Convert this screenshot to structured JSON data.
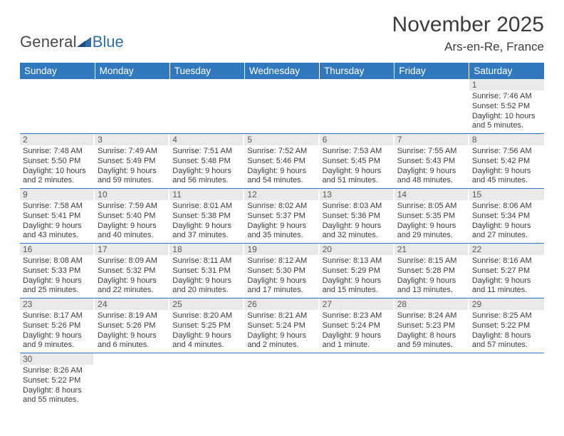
{
  "logo": {
    "general": "General",
    "blue": "Blue"
  },
  "title": "November 2025",
  "location": "Ars-en-Re, France",
  "colors": {
    "header_bg": "#3179be",
    "header_fg": "#ffffff",
    "daynum_bg": "#e9e9e9",
    "row_border": "#3179be",
    "text": "#3c3c3c"
  },
  "weekdays": [
    "Sunday",
    "Monday",
    "Tuesday",
    "Wednesday",
    "Thursday",
    "Friday",
    "Saturday"
  ],
  "weeks": [
    [
      null,
      null,
      null,
      null,
      null,
      null,
      {
        "n": 1,
        "sunrise": "7:46 AM",
        "sunset": "5:52 PM",
        "daylight": "10 hours and 5 minutes."
      }
    ],
    [
      {
        "n": 2,
        "sunrise": "7:48 AM",
        "sunset": "5:50 PM",
        "daylight": "10 hours and 2 minutes."
      },
      {
        "n": 3,
        "sunrise": "7:49 AM",
        "sunset": "5:49 PM",
        "daylight": "9 hours and 59 minutes."
      },
      {
        "n": 4,
        "sunrise": "7:51 AM",
        "sunset": "5:48 PM",
        "daylight": "9 hours and 56 minutes."
      },
      {
        "n": 5,
        "sunrise": "7:52 AM",
        "sunset": "5:46 PM",
        "daylight": "9 hours and 54 minutes."
      },
      {
        "n": 6,
        "sunrise": "7:53 AM",
        "sunset": "5:45 PM",
        "daylight": "9 hours and 51 minutes."
      },
      {
        "n": 7,
        "sunrise": "7:55 AM",
        "sunset": "5:43 PM",
        "daylight": "9 hours and 48 minutes."
      },
      {
        "n": 8,
        "sunrise": "7:56 AM",
        "sunset": "5:42 PM",
        "daylight": "9 hours and 45 minutes."
      }
    ],
    [
      {
        "n": 9,
        "sunrise": "7:58 AM",
        "sunset": "5:41 PM",
        "daylight": "9 hours and 43 minutes."
      },
      {
        "n": 10,
        "sunrise": "7:59 AM",
        "sunset": "5:40 PM",
        "daylight": "9 hours and 40 minutes."
      },
      {
        "n": 11,
        "sunrise": "8:01 AM",
        "sunset": "5:38 PM",
        "daylight": "9 hours and 37 minutes."
      },
      {
        "n": 12,
        "sunrise": "8:02 AM",
        "sunset": "5:37 PM",
        "daylight": "9 hours and 35 minutes."
      },
      {
        "n": 13,
        "sunrise": "8:03 AM",
        "sunset": "5:36 PM",
        "daylight": "9 hours and 32 minutes."
      },
      {
        "n": 14,
        "sunrise": "8:05 AM",
        "sunset": "5:35 PM",
        "daylight": "9 hours and 29 minutes."
      },
      {
        "n": 15,
        "sunrise": "8:06 AM",
        "sunset": "5:34 PM",
        "daylight": "9 hours and 27 minutes."
      }
    ],
    [
      {
        "n": 16,
        "sunrise": "8:08 AM",
        "sunset": "5:33 PM",
        "daylight": "9 hours and 25 minutes."
      },
      {
        "n": 17,
        "sunrise": "8:09 AM",
        "sunset": "5:32 PM",
        "daylight": "9 hours and 22 minutes."
      },
      {
        "n": 18,
        "sunrise": "8:11 AM",
        "sunset": "5:31 PM",
        "daylight": "9 hours and 20 minutes."
      },
      {
        "n": 19,
        "sunrise": "8:12 AM",
        "sunset": "5:30 PM",
        "daylight": "9 hours and 17 minutes."
      },
      {
        "n": 20,
        "sunrise": "8:13 AM",
        "sunset": "5:29 PM",
        "daylight": "9 hours and 15 minutes."
      },
      {
        "n": 21,
        "sunrise": "8:15 AM",
        "sunset": "5:28 PM",
        "daylight": "9 hours and 13 minutes."
      },
      {
        "n": 22,
        "sunrise": "8:16 AM",
        "sunset": "5:27 PM",
        "daylight": "9 hours and 11 minutes."
      }
    ],
    [
      {
        "n": 23,
        "sunrise": "8:17 AM",
        "sunset": "5:26 PM",
        "daylight": "9 hours and 9 minutes."
      },
      {
        "n": 24,
        "sunrise": "8:19 AM",
        "sunset": "5:26 PM",
        "daylight": "9 hours and 6 minutes."
      },
      {
        "n": 25,
        "sunrise": "8:20 AM",
        "sunset": "5:25 PM",
        "daylight": "9 hours and 4 minutes."
      },
      {
        "n": 26,
        "sunrise": "8:21 AM",
        "sunset": "5:24 PM",
        "daylight": "9 hours and 2 minutes."
      },
      {
        "n": 27,
        "sunrise": "8:23 AM",
        "sunset": "5:24 PM",
        "daylight": "9 hours and 1 minute."
      },
      {
        "n": 28,
        "sunrise": "8:24 AM",
        "sunset": "5:23 PM",
        "daylight": "8 hours and 59 minutes."
      },
      {
        "n": 29,
        "sunrise": "8:25 AM",
        "sunset": "5:22 PM",
        "daylight": "8 hours and 57 minutes."
      }
    ],
    [
      {
        "n": 30,
        "sunrise": "8:26 AM",
        "sunset": "5:22 PM",
        "daylight": "8 hours and 55 minutes."
      },
      null,
      null,
      null,
      null,
      null,
      null
    ]
  ],
  "labels": {
    "sunrise": "Sunrise:",
    "sunset": "Sunset:",
    "daylight": "Daylight:"
  }
}
